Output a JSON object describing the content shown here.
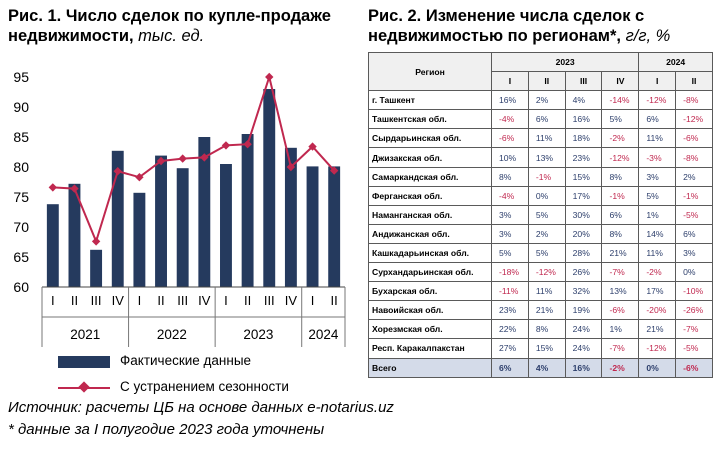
{
  "left": {
    "title_main": "Рис. 1. Число сделок по купле-продаже недвижимости,",
    "title_unit": " тыс. ед.",
    "legend": {
      "bars": "Фактические данные",
      "line": "С устранением сезонности"
    },
    "colors": {
      "bars": "#253a5e",
      "line": "#c0284f"
    }
  },
  "chart_data": [
    {
      "type": "bar",
      "categories": [
        "I",
        "II",
        "III",
        "IV",
        "I",
        "II",
        "III",
        "IV",
        "I",
        "II",
        "III",
        "IV",
        "I",
        "II"
      ],
      "year_groups": [
        {
          "label": "2021",
          "count": 4
        },
        {
          "label": "2022",
          "count": 4
        },
        {
          "label": "2023",
          "count": 4
        },
        {
          "label": "2024",
          "count": 2
        }
      ],
      "series": [
        {
          "name": "Фактические данные",
          "type": "bar",
          "values": [
            73.8,
            77.2,
            66.2,
            82.7,
            75.7,
            81.9,
            79.8,
            85.0,
            80.5,
            85.5,
            93.0,
            83.2,
            80.1,
            80.1
          ]
        },
        {
          "name": "С устранением сезонности",
          "type": "line",
          "values": [
            76.6,
            76.4,
            67.6,
            79.3,
            78.3,
            81.0,
            81.4,
            81.6,
            83.6,
            83.8,
            95.0,
            80.0,
            83.4,
            79.4
          ]
        }
      ],
      "ylim": [
        60,
        95
      ],
      "yticks": [
        60,
        65,
        70,
        75,
        80,
        85,
        90,
        95
      ],
      "grid": false
    },
    {
      "type": "table",
      "title_main": "Рис. 2. Изменение числа сделок с недвижимостью по регионам*,",
      "title_unit": " г/г, %",
      "header": {
        "region": "Регион",
        "years": [
          {
            "label": "2023",
            "span": 4
          },
          {
            "label": "2024",
            "span": 2
          }
        ],
        "quarters": [
          "I",
          "II",
          "III",
          "IV",
          "I",
          "II"
        ]
      },
      "rows": [
        {
          "region": "г. Ташкент",
          "values": [
            "16%",
            "2%",
            "4%",
            "-14%",
            "-12%",
            "-8%"
          ]
        },
        {
          "region": "Ташкентская обл.",
          "values": [
            "-4%",
            "6%",
            "16%",
            "5%",
            "6%",
            "-12%"
          ]
        },
        {
          "region": "Сырдарьинская обл.",
          "values": [
            "-6%",
            "11%",
            "18%",
            "-2%",
            "11%",
            "-6%"
          ]
        },
        {
          "region": "Джизакская обл.",
          "values": [
            "10%",
            "13%",
            "23%",
            "-12%",
            "-3%",
            "-8%"
          ]
        },
        {
          "region": "Самаркандская обл.",
          "values": [
            "8%",
            "-1%",
            "15%",
            "8%",
            "3%",
            "2%"
          ]
        },
        {
          "region": "Ферганская обл.",
          "values": [
            "-4%",
            "0%",
            "17%",
            "-1%",
            "5%",
            "-1%"
          ]
        },
        {
          "region": "Наманганская обл.",
          "values": [
            "3%",
            "5%",
            "30%",
            "6%",
            "1%",
            "-5%"
          ]
        },
        {
          "region": "Андижанская обл.",
          "values": [
            "3%",
            "2%",
            "20%",
            "8%",
            "14%",
            "6%"
          ]
        },
        {
          "region": "Кашкадарьинская обл.",
          "values": [
            "5%",
            "5%",
            "28%",
            "21%",
            "11%",
            "3%"
          ]
        },
        {
          "region": "Сурхандарьинская обл.",
          "values": [
            "-18%",
            "-12%",
            "26%",
            "-7%",
            "-2%",
            "0%"
          ]
        },
        {
          "region": "Бухарская обл.",
          "values": [
            "-11%",
            "11%",
            "32%",
            "13%",
            "17%",
            "-10%"
          ]
        },
        {
          "region": "Навоийская обл.",
          "values": [
            "23%",
            "21%",
            "19%",
            "-6%",
            "-20%",
            "-26%"
          ]
        },
        {
          "region": "Хорезмская обл.",
          "values": [
            "22%",
            "8%",
            "24%",
            "1%",
            "21%",
            "-7%"
          ]
        },
        {
          "region": "Респ. Каракалпакстан",
          "values": [
            "27%",
            "15%",
            "24%",
            "-7%",
            "-12%",
            "-5%"
          ]
        }
      ],
      "total": {
        "region": "Всего",
        "values": [
          "6%",
          "4%",
          "16%",
          "-2%",
          "0%",
          "-6%"
        ]
      },
      "colors": {
        "positive": "#2c3e6b",
        "negative": "#c0284f",
        "total_bg": "#d4dbe9"
      }
    }
  ],
  "footer": {
    "source": "Источник: расчеты ЦБ на основе данных e-notarius.uz",
    "note": "* данные за I полугодие 2023 года уточнены"
  }
}
